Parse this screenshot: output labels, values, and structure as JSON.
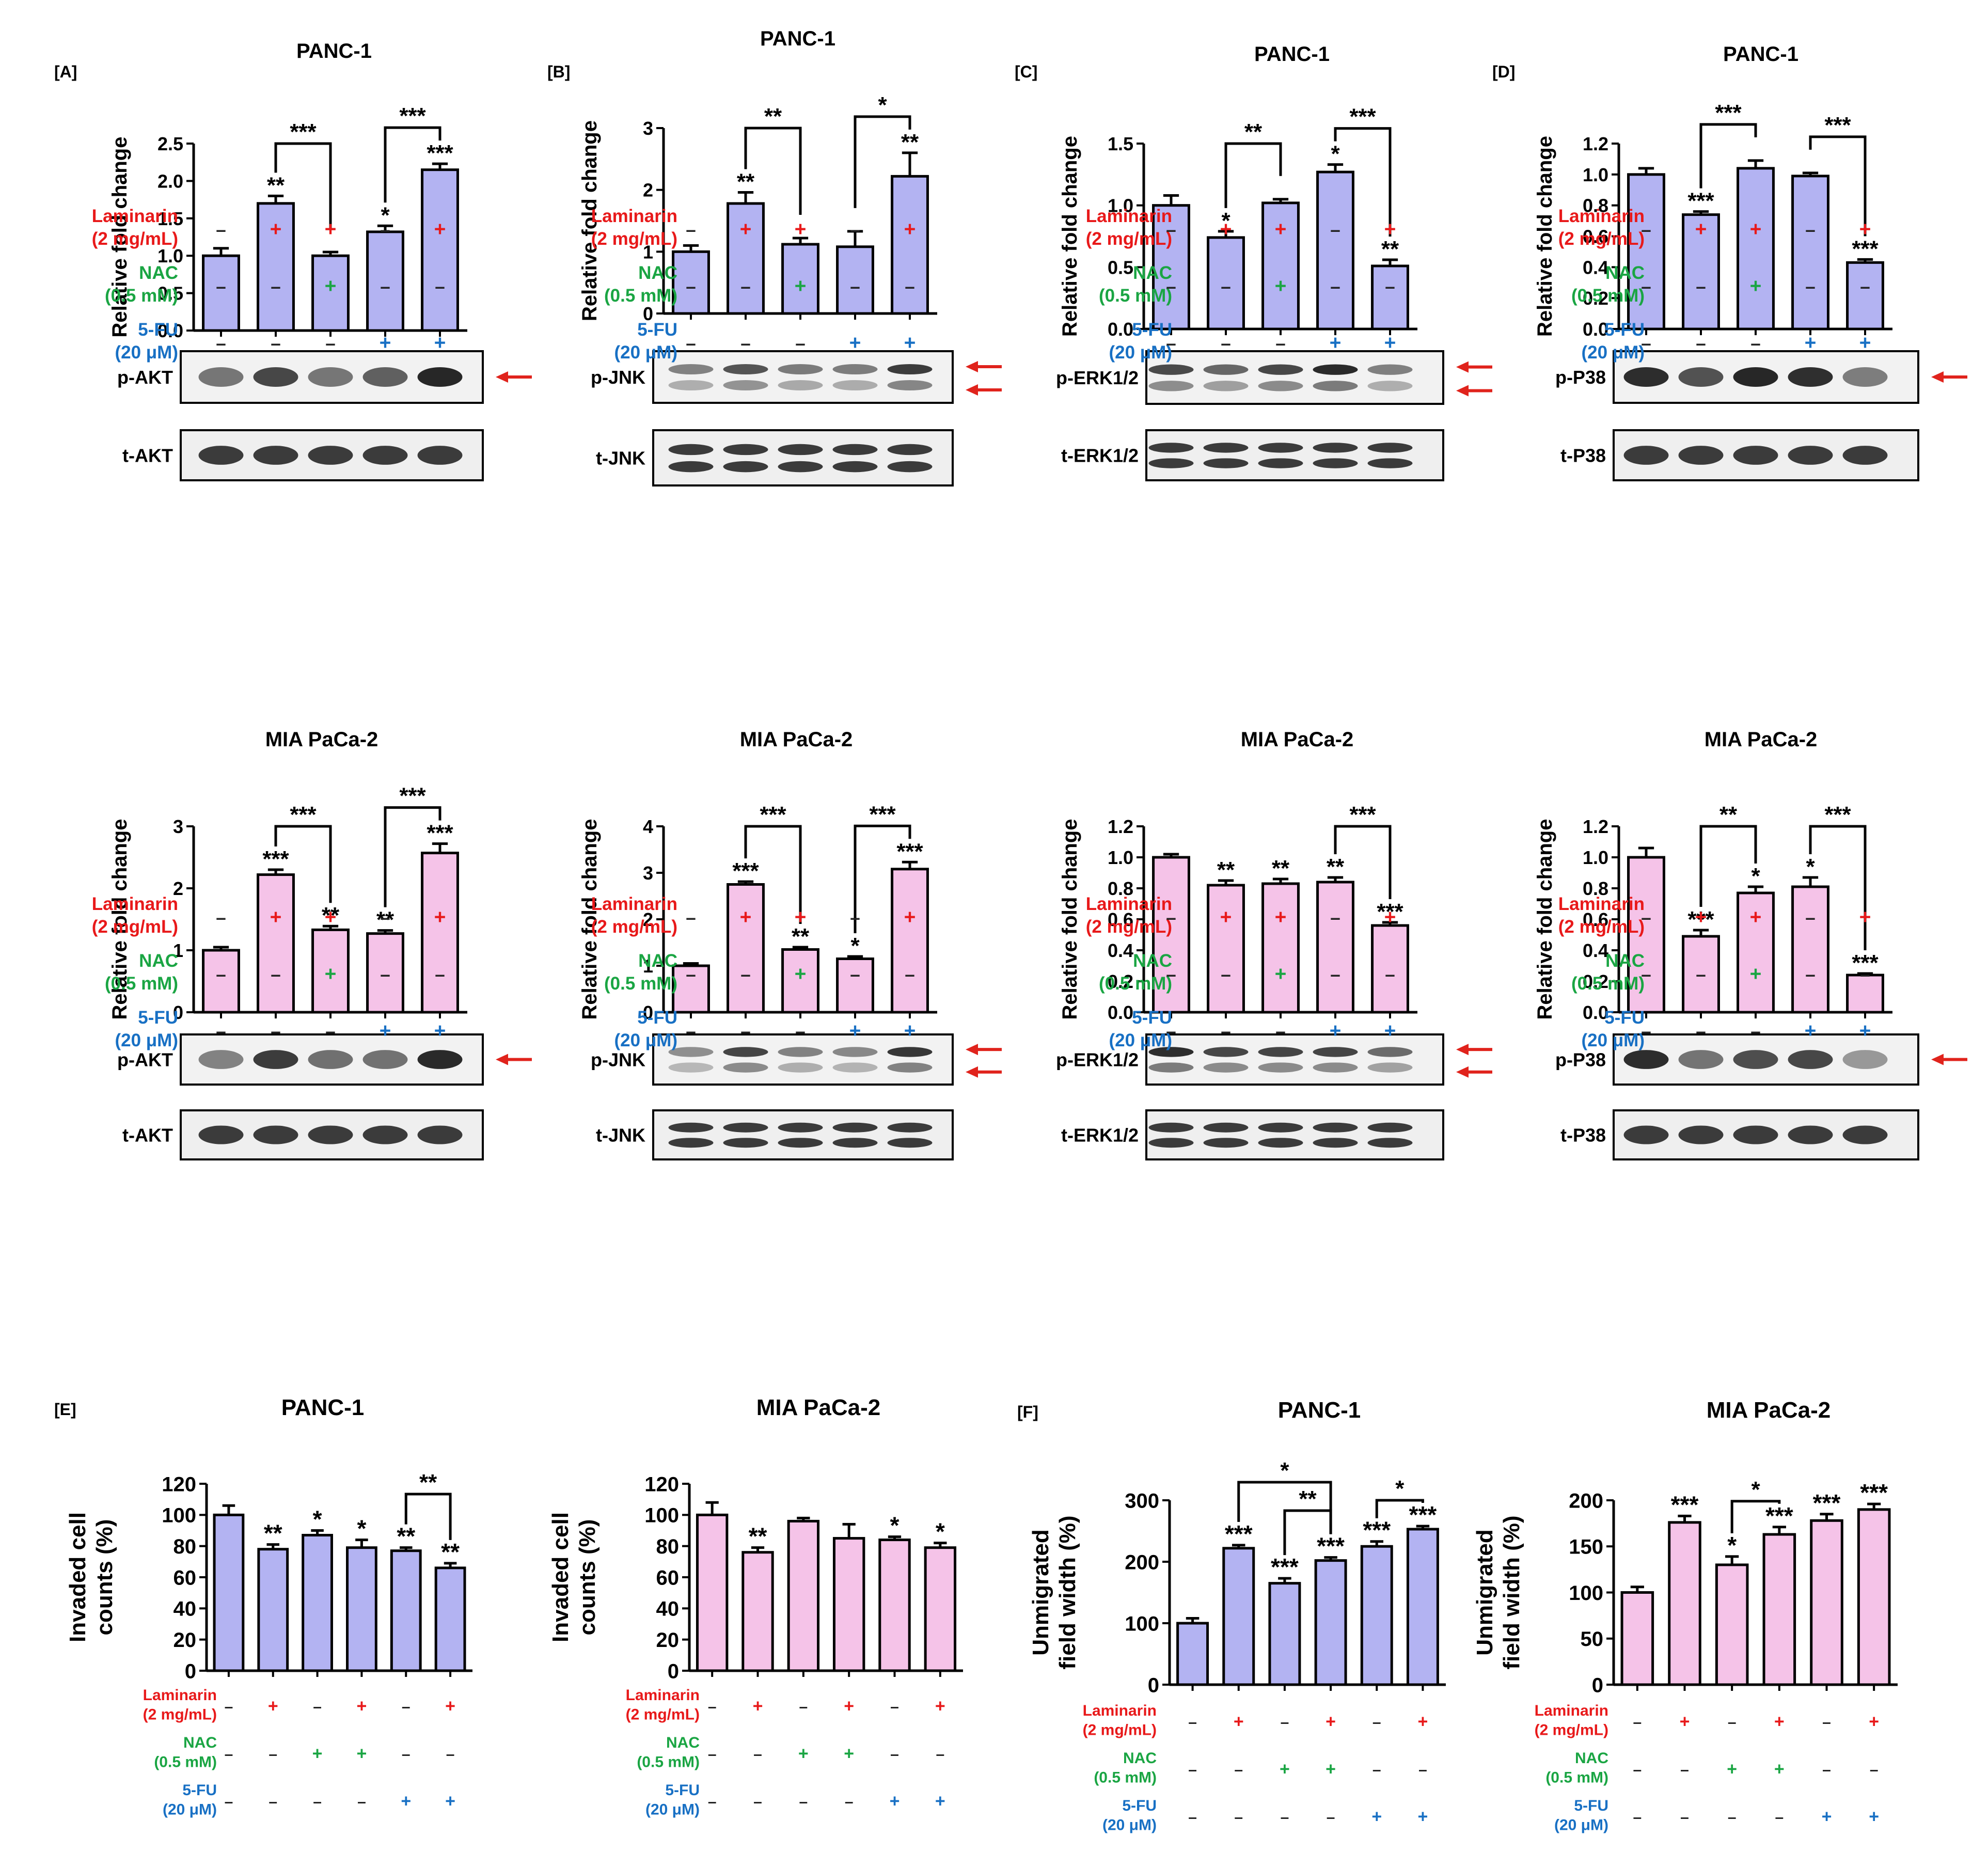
{
  "figure": {
    "panel_letters": [
      "[A]",
      "[B]",
      "[C]",
      "[D]",
      "[E]",
      "[F]"
    ]
  },
  "colors": {
    "panc_bar": "#b3b3f2",
    "mia_bar": "#f5c3e8",
    "laminarin": "#e8191a",
    "nac": "#1aa543",
    "fu": "#1870c4",
    "arrow": "#e0231c"
  },
  "treatment_labels": {
    "laminarin": [
      "Laminarin",
      "(2 mg/mL)"
    ],
    "nac": [
      "NAC",
      "(0.5 mM)"
    ],
    "fu": [
      "5-FU",
      "(20 μM)"
    ],
    "plus": "+",
    "minus": "–"
  },
  "treatment_rows": {
    "wb": {
      "laminarin": [
        "–",
        "+",
        "+",
        "–",
        "+"
      ],
      "nac": [
        "–",
        "–",
        "+",
        "–",
        "–"
      ],
      "fu": [
        "–",
        "–",
        "–",
        "+",
        "+"
      ]
    },
    "inv": {
      "laminarin": [
        "–",
        "+",
        "–",
        "+",
        "–",
        "+"
      ],
      "nac": [
        "–",
        "–",
        "+",
        "+",
        "–",
        "–"
      ],
      "fu": [
        "–",
        "–",
        "–",
        "–",
        "+",
        "+"
      ]
    }
  },
  "chart_data": [
    {
      "id": "A1",
      "type": "bar",
      "panel": "[A]",
      "title": "PANC-1",
      "ylabel": "Relative fold change",
      "ylim": [
        0,
        2.5
      ],
      "yticks": [
        "0.0",
        "0.5",
        "1.0",
        "1.5",
        "2.0",
        "2.5"
      ],
      "values": [
        1.0,
        1.7,
        1.0,
        1.32,
        2.15
      ],
      "errors": [
        0.1,
        0.1,
        0.05,
        0.08,
        0.08
      ],
      "stars": [
        "",
        "**",
        "",
        "*",
        "***"
      ],
      "brackets": [
        {
          "from": 1,
          "to": 2,
          "label": "***"
        },
        {
          "from": 3,
          "to": 4,
          "label": "***"
        }
      ],
      "color": "panc",
      "blot": {
        "p": "p-AKT",
        "t": "t-AKT",
        "arrows": 1
      }
    },
    {
      "id": "B1",
      "type": "bar",
      "panel": "[B]",
      "title": "PANC-1",
      "ylabel": "Relative fold change",
      "ylim": [
        0,
        3
      ],
      "yticks": [
        "0",
        "1",
        "2",
        "3"
      ],
      "values": [
        1.0,
        1.78,
        1.12,
        1.08,
        2.22
      ],
      "errors": [
        0.1,
        0.18,
        0.1,
        0.25,
        0.38
      ],
      "stars": [
        "",
        "**",
        "",
        "",
        "**"
      ],
      "brackets": [
        {
          "from": 1,
          "to": 2,
          "label": "**"
        },
        {
          "from": 3,
          "to": 4,
          "label": "*"
        }
      ],
      "color": "panc",
      "blot": {
        "p": "p-JNK",
        "t": "t-JNK",
        "arrows": 2
      }
    },
    {
      "id": "C1",
      "type": "bar",
      "panel": "[C]",
      "title": "PANC-1",
      "ylabel": "Relative fold change",
      "ylim": [
        0,
        1.5
      ],
      "yticks": [
        "0.0",
        "0.5",
        "1.0",
        "1.5"
      ],
      "values": [
        1.0,
        0.74,
        1.02,
        1.27,
        0.51
      ],
      "errors": [
        0.08,
        0.05,
        0.03,
        0.06,
        0.05
      ],
      "stars": [
        "",
        "*",
        "",
        "*",
        "**"
      ],
      "brackets": [
        {
          "from": 1,
          "to": 2,
          "label": "**"
        },
        {
          "from": 3,
          "to": 4,
          "label": "***"
        }
      ],
      "color": "panc",
      "blot": {
        "p": "p-ERK1/2",
        "t": "t-ERK1/2",
        "arrows": 2
      }
    },
    {
      "id": "D1",
      "type": "bar",
      "panel": "[D]",
      "title": "PANC-1",
      "ylabel": "Relative fold change",
      "ylim": [
        0,
        1.2
      ],
      "yticks": [
        "0.0",
        "0.2",
        "0.4",
        "0.6",
        "0.8",
        "1.0",
        "1.2"
      ],
      "values": [
        1.0,
        0.74,
        1.04,
        0.99,
        0.43
      ],
      "errors": [
        0.04,
        0.02,
        0.05,
        0.02,
        0.02
      ],
      "stars": [
        "",
        "***",
        "",
        "",
        "***"
      ],
      "brackets": [
        {
          "from": 1,
          "to": 2,
          "label": "***"
        },
        {
          "from": 3,
          "to": 4,
          "label": "***"
        }
      ],
      "color": "panc",
      "blot": {
        "p": "p-P38",
        "t": "t-P38",
        "arrows": 1
      }
    },
    {
      "id": "A2",
      "type": "bar",
      "title": "MIA PaCa-2",
      "ylabel": "Relative fold change",
      "ylim": [
        0,
        3
      ],
      "yticks": [
        "0",
        "1",
        "2",
        "3"
      ],
      "values": [
        1.0,
        2.22,
        1.33,
        1.27,
        2.57
      ],
      "errors": [
        0.05,
        0.08,
        0.06,
        0.05,
        0.15
      ],
      "stars": [
        "",
        "***",
        "**",
        "**",
        "***"
      ],
      "brackets": [
        {
          "from": 1,
          "to": 2,
          "label": "***"
        },
        {
          "from": 3,
          "to": 4,
          "label": "***"
        }
      ],
      "color": "mia",
      "blot": {
        "p": "p-AKT",
        "t": "t-AKT",
        "arrows": 1
      }
    },
    {
      "id": "B2",
      "type": "bar",
      "title": "MIA PaCa-2",
      "ylabel": "Relative fold change",
      "ylim": [
        0,
        4
      ],
      "yticks": [
        "0",
        "1",
        "2",
        "3",
        "4"
      ],
      "values": [
        1.0,
        2.75,
        1.35,
        1.15,
        3.08
      ],
      "errors": [
        0.05,
        0.06,
        0.05,
        0.05,
        0.15
      ],
      "stars": [
        "",
        "***",
        "**",
        "*",
        "***"
      ],
      "brackets": [
        {
          "from": 1,
          "to": 2,
          "label": "***"
        },
        {
          "from": 3,
          "to": 4,
          "label": "***"
        }
      ],
      "color": "mia",
      "blot": {
        "p": "p-JNK",
        "t": "t-JNK",
        "arrows": 2
      }
    },
    {
      "id": "C2",
      "type": "bar",
      "title": "MIA PaCa-2",
      "ylabel": "Relative fold change",
      "ylim": [
        0,
        1.2
      ],
      "yticks": [
        "0.0",
        "0.2",
        "0.4",
        "0.6",
        "0.8",
        "1.0",
        "1.2"
      ],
      "values": [
        1.0,
        0.82,
        0.83,
        0.84,
        0.56
      ],
      "errors": [
        0.02,
        0.03,
        0.03,
        0.03,
        0.02
      ],
      "stars": [
        "",
        "**",
        "**",
        "**",
        "***"
      ],
      "brackets": [
        {
          "from": 3,
          "to": 4,
          "label": "***"
        }
      ],
      "color": "mia",
      "blot": {
        "p": "p-ERK1/2",
        "t": "t-ERK1/2",
        "arrows": 2
      }
    },
    {
      "id": "D2",
      "type": "bar",
      "title": "MIA PaCa-2",
      "ylabel": "Relative fold change",
      "ylim": [
        0,
        1.2
      ],
      "yticks": [
        "0.0",
        "0.2",
        "0.4",
        "0.6",
        "0.8",
        "1.0",
        "1.2"
      ],
      "values": [
        1.0,
        0.49,
        0.77,
        0.81,
        0.24
      ],
      "errors": [
        0.06,
        0.04,
        0.04,
        0.06,
        0.01
      ],
      "stars": [
        "",
        "***",
        "*",
        "*",
        "***"
      ],
      "brackets": [
        {
          "from": 1,
          "to": 2,
          "label": "**"
        },
        {
          "from": 3,
          "to": 4,
          "label": "***"
        }
      ],
      "color": "mia",
      "blot": {
        "p": "p-P38",
        "t": "t-P38",
        "arrows": 1
      }
    },
    {
      "id": "E1",
      "type": "bar",
      "panel": "[E]",
      "title": "PANC-1",
      "ylabel": [
        "Invaded cell",
        "counts (%)"
      ],
      "ylim": [
        0,
        120
      ],
      "yticks": [
        "0",
        "20",
        "40",
        "60",
        "80",
        "100",
        "120"
      ],
      "values": [
        100,
        78,
        87,
        79,
        77,
        66
      ],
      "errors": [
        6,
        3,
        3,
        5,
        2,
        3
      ],
      "stars": [
        "",
        "**",
        "*",
        "*",
        "**",
        "**"
      ],
      "brackets": [
        {
          "from": 4,
          "to": 5,
          "label": "**"
        }
      ],
      "color": "panc"
    },
    {
      "id": "E2",
      "type": "bar",
      "title": "MIA PaCa-2",
      "ylabel": [
        "Invaded cell",
        "counts (%)"
      ],
      "ylim": [
        0,
        120
      ],
      "yticks": [
        "0",
        "20",
        "40",
        "60",
        "80",
        "100",
        "120"
      ],
      "values": [
        100,
        76,
        96,
        85,
        84,
        79
      ],
      "errors": [
        8,
        3,
        2,
        9,
        2,
        3
      ],
      "stars": [
        "",
        "**",
        "",
        "",
        "*",
        "*"
      ],
      "brackets": [],
      "color": "mia"
    },
    {
      "id": "F1",
      "type": "bar",
      "panel": "[F]",
      "title": "PANC-1",
      "ylabel": [
        "Unmigrated",
        "field width (%)"
      ],
      "ylim": [
        0,
        300
      ],
      "yticks": [
        "0",
        "100",
        "200",
        "300"
      ],
      "values": [
        100,
        222,
        165,
        202,
        225,
        253
      ],
      "errors": [
        8,
        5,
        8,
        5,
        8,
        5
      ],
      "stars": [
        "",
        "***",
        "***",
        "***",
        "***",
        "***"
      ],
      "brackets": [
        {
          "from": 1,
          "to": 3,
          "label": "*",
          "level": 2
        },
        {
          "from": 2,
          "to": 3,
          "label": "**",
          "level": 1
        },
        {
          "from": 4,
          "to": 5,
          "label": "*",
          "level": 1
        }
      ],
      "color": "panc"
    },
    {
      "id": "F2",
      "type": "bar",
      "title": "MIA PaCa-2",
      "ylabel": [
        "Unmigrated",
        "field width (%)"
      ],
      "ylim": [
        0,
        200
      ],
      "yticks": [
        "0",
        "50",
        "100",
        "150",
        "200"
      ],
      "values": [
        100,
        176,
        130,
        163,
        178,
        190
      ],
      "errors": [
        6,
        7,
        9,
        8,
        7,
        6
      ],
      "stars": [
        "",
        "***",
        "*",
        "***",
        "***",
        "***"
      ],
      "brackets": [
        {
          "from": 2,
          "to": 3,
          "label": "*",
          "level": 1
        }
      ],
      "color": "mia"
    }
  ]
}
